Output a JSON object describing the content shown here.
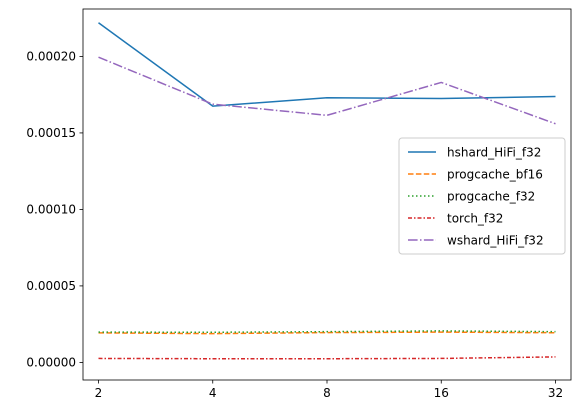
{
  "chart_data": {
    "type": "line",
    "x": [
      2,
      4,
      8,
      16,
      32
    ],
    "xticks": [
      "2",
      "4",
      "8",
      "16",
      "32"
    ],
    "yticks": [
      "0.00000",
      "0.00005",
      "0.00010",
      "0.00015",
      "0.00020"
    ],
    "ylim": [
      -1.15e-05,
      0.000231
    ],
    "legend_position": "center-right",
    "grid": false,
    "series": [
      {
        "name": "hshard_HiFi_f32",
        "values": [
          0.000222,
          0.0001675,
          0.000173,
          0.0001725,
          0.0001738
        ],
        "color": "#1f77b4",
        "dash": "solid"
      },
      {
        "name": "progcache_bf16",
        "values": [
          1.93e-05,
          1.88e-05,
          1.95e-05,
          1.98e-05,
          1.94e-05
        ],
        "color": "#ff7f0e",
        "dash": "dashed"
      },
      {
        "name": "progcache_f32",
        "values": [
          1.98e-05,
          1.97e-05,
          2.01e-05,
          2.06e-05,
          2.01e-05
        ],
        "color": "#2ca02c",
        "dash": "dotted"
      },
      {
        "name": "torch_f32",
        "values": [
          2.6e-06,
          2.4e-06,
          2.4e-06,
          2.6e-06,
          3.6e-06
        ],
        "color": "#d62728",
        "dash": "dashdot-dense"
      },
      {
        "name": "wshard_HiFi_f32",
        "values": [
          0.0001995,
          0.0001688,
          0.0001615,
          0.000183,
          0.000156
        ],
        "color": "#9467bd",
        "dash": "dashdot"
      }
    ]
  }
}
